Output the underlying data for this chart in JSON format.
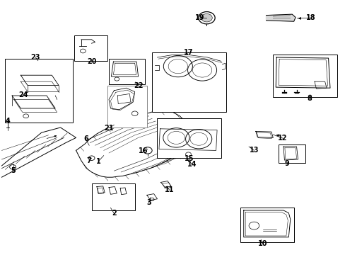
{
  "bg_color": "#ffffff",
  "fig_width": 4.89,
  "fig_height": 3.6,
  "dpi": 100,
  "lc": "#000000",
  "fs": 7.0,
  "boxes": {
    "b23": [
      0.015,
      0.52,
      0.195,
      0.25
    ],
    "b20": [
      0.215,
      0.76,
      0.095,
      0.1
    ],
    "b22": [
      0.315,
      0.67,
      0.105,
      0.1
    ],
    "b21": [
      0.31,
      0.5,
      0.115,
      0.165
    ],
    "b17": [
      0.44,
      0.56,
      0.215,
      0.235
    ],
    "b15": [
      0.455,
      0.38,
      0.185,
      0.155
    ],
    "b8": [
      0.79,
      0.62,
      0.185,
      0.165
    ],
    "b9": [
      0.805,
      0.36,
      0.078,
      0.073
    ],
    "b10": [
      0.695,
      0.05,
      0.155,
      0.135
    ],
    "b2": [
      0.265,
      0.175,
      0.125,
      0.105
    ]
  }
}
